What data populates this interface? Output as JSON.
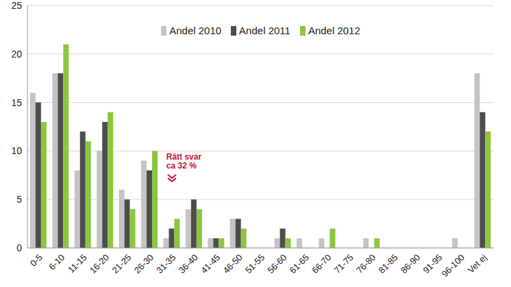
{
  "chart_data": {
    "type": "bar",
    "categories": [
      "0-5",
      "6-10",
      "11-15",
      "16-20",
      "21-25",
      "26-30",
      "31-35",
      "36-40",
      "41-45",
      "46-50",
      "51-55",
      "56-60",
      "61-65",
      "66-70",
      "71-75",
      "76-80",
      "81-85",
      "86-90",
      "91-95",
      "96-100",
      "Vet ej"
    ],
    "series": [
      {
        "name": "Andel 2010",
        "color": "#c4c4c4",
        "values": [
          16,
          18,
          8,
          10,
          6,
          9,
          1,
          4,
          1,
          3,
          0,
          1,
          1,
          1,
          0,
          1,
          0,
          0,
          0,
          1,
          18
        ]
      },
      {
        "name": "Andel 2011",
        "color": "#4d4d4d",
        "values": [
          15,
          18,
          12,
          13,
          5,
          8,
          2,
          5,
          1,
          3,
          0,
          2,
          0,
          0,
          0,
          0,
          0,
          0,
          0,
          0,
          14
        ]
      },
      {
        "name": "Andel 2012",
        "color": "#8cc63e",
        "values": [
          13,
          21,
          11,
          14,
          4,
          10,
          3,
          4,
          1,
          2,
          0,
          1,
          0,
          2,
          0,
          1,
          0,
          0,
          0,
          0,
          12
        ]
      }
    ],
    "ylim": [
      0,
      25
    ],
    "yticks": [
      0,
      5,
      10,
      15,
      20,
      25
    ],
    "grid": true,
    "legend": "top",
    "annotations": [
      {
        "lines": [
          "Rätt svar",
          "ca 32 %"
        ],
        "category": "31-35",
        "color": "#c8102e"
      }
    ]
  }
}
